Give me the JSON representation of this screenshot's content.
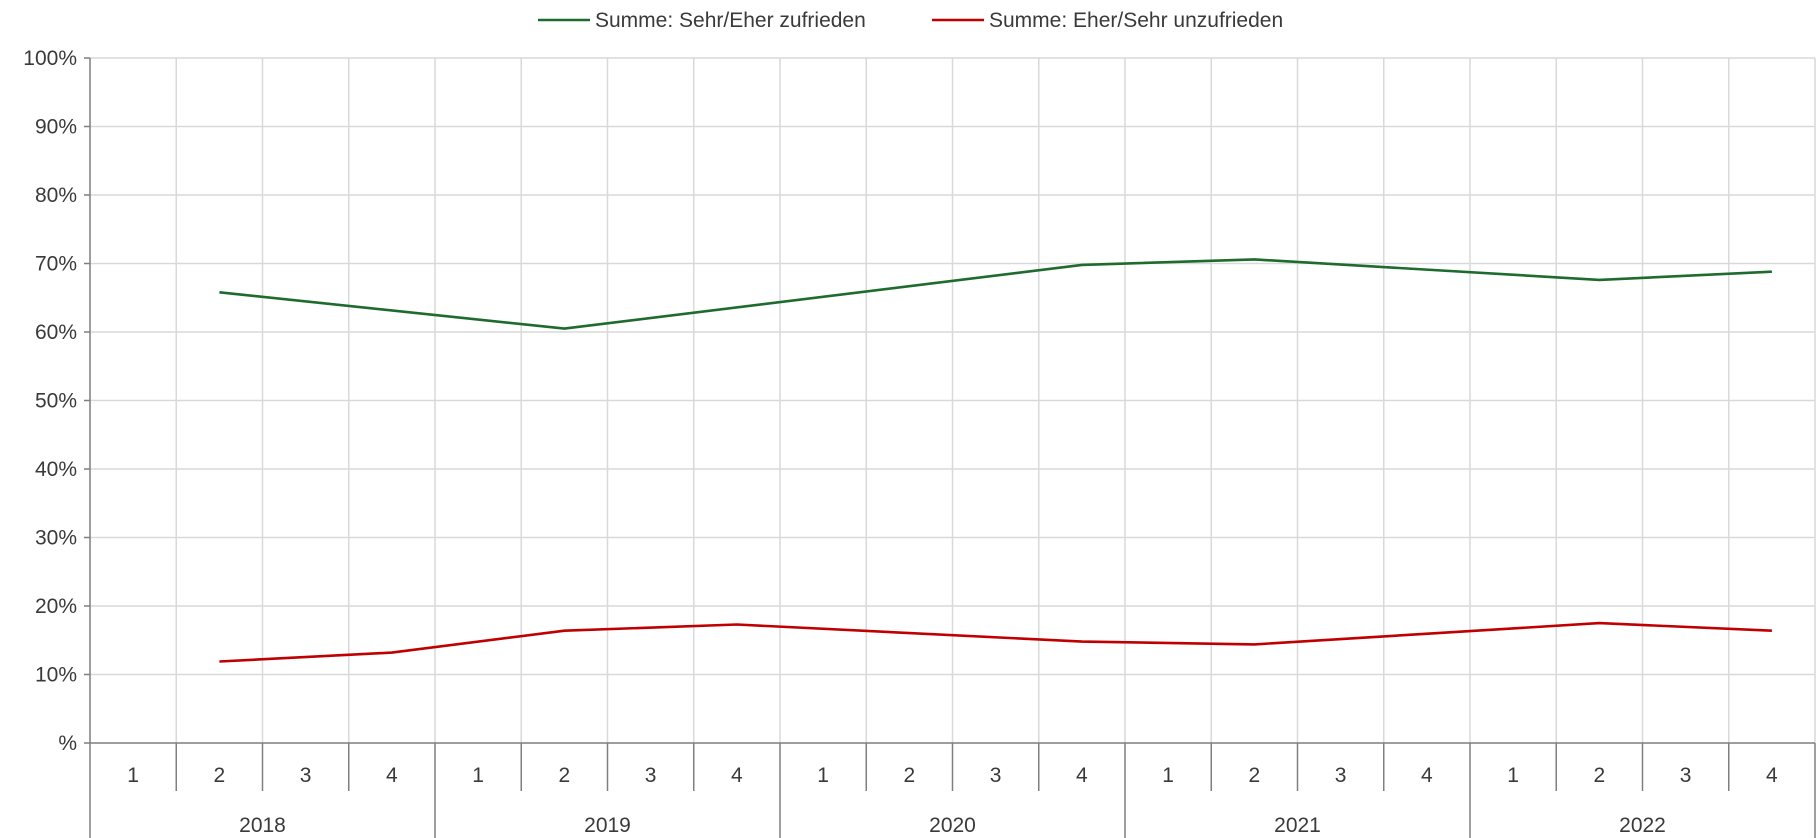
{
  "chart_data": {
    "type": "line",
    "x_levels": {
      "quarters": [
        "1",
        "2",
        "3",
        "4",
        "1",
        "2",
        "3",
        "4",
        "1",
        "2",
        "3",
        "4",
        "1",
        "2",
        "3",
        "4",
        "1",
        "2",
        "3",
        "4"
      ],
      "years": [
        "2018",
        "2019",
        "2020",
        "2021",
        "2022"
      ]
    },
    "ylim": [
      0,
      100
    ],
    "yticks": [
      "%",
      "10%",
      "20%",
      "30%",
      "40%",
      "50%",
      "60%",
      "70%",
      "80%",
      "90%",
      "100%"
    ],
    "grid": true,
    "legend_position": "top-center",
    "series": [
      {
        "name": "Summe: Sehr/Eher zufrieden",
        "color": "#1e6b2e",
        "values": [
          null,
          65.8,
          null,
          null,
          null,
          60.5,
          null,
          null,
          null,
          null,
          null,
          69.8,
          null,
          70.6,
          null,
          null,
          null,
          67.6,
          null,
          68.8
        ]
      },
      {
        "name": "Summe: Eher/Sehr unzufrieden",
        "color": "#c00000",
        "values": [
          null,
          11.9,
          null,
          13.2,
          null,
          16.4,
          null,
          17.3,
          null,
          null,
          null,
          14.8,
          null,
          14.4,
          null,
          null,
          null,
          17.5,
          null,
          16.4
        ]
      }
    ]
  }
}
